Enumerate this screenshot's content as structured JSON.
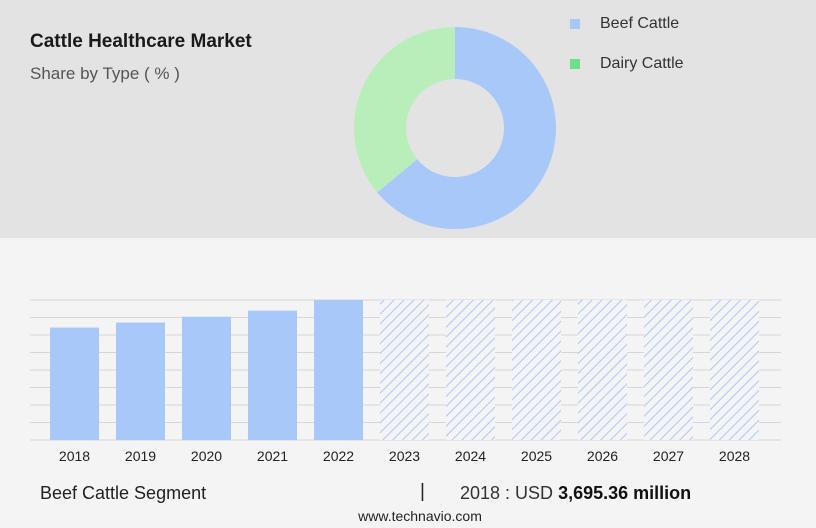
{
  "header": {
    "title": "Cattle Healthcare Market",
    "subtitle": "Share by Type ( % )"
  },
  "legend": [
    {
      "label": "Beef Cattle",
      "color": "#a8c8fa"
    },
    {
      "label": "Dairy Cattle",
      "color": "#6ee08a"
    }
  ],
  "chart_data": [
    {
      "type": "pie",
      "variant": "donut",
      "slices": [
        {
          "label": "Beef Cattle",
          "value": 64,
          "color": "#a8c8fa"
        },
        {
          "label": "Dairy Cattle",
          "value": 36,
          "color": "#b8eeb9"
        }
      ]
    },
    {
      "type": "bar",
      "categories": [
        "2018",
        "2019",
        "2020",
        "2021",
        "2022",
        "2023",
        "2024",
        "2025",
        "2026",
        "2027",
        "2028"
      ],
      "values": [
        3695.36,
        3860,
        4050,
        4250,
        4600,
        4600,
        4600,
        4600,
        4600,
        4600,
        4600
      ],
      "forecast_start_index": 5,
      "bar_color": "#a8c8fa",
      "grid": true,
      "ylim": [
        0,
        4600
      ]
    }
  ],
  "footer": {
    "segment_label": "Beef Cattle Segment",
    "separator": "|",
    "year_text": "2018 : USD",
    "value_text": "3,695.36 million",
    "site": "www.technavio.com"
  }
}
